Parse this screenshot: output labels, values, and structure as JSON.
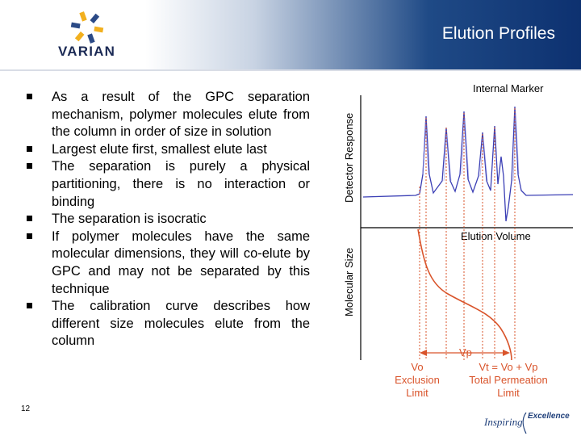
{
  "header": {
    "logo_text": "VARIAN",
    "title": "Elution Profiles"
  },
  "bullets": [
    "As a result of the GPC separation mechanism, polymer molecules elute from the column in order of size in solution",
    "Largest elute first, smallest elute last",
    "The separation is purely a physical partitioning, there is no interaction or binding",
    "The separation is isocratic",
    "If polymer molecules have the same molecular dimensions, they will co-elute by GPC and may not be separated by this technique",
    "The calibration curve describes how different size molecules elute from the column"
  ],
  "page_number": "12",
  "figure": {
    "internal_marker": "Internal Marker",
    "detector_response": "Detector Response",
    "molecular_size": "Molecular Size",
    "elution_volume": "Elution Volume",
    "vp": "Vp",
    "vo_line1": "Vo",
    "vo_line2": "Exclusion",
    "vo_line3": "Limit",
    "vt_line1": "Vt = Vo + Vp",
    "vt_line2": "Total Permeation",
    "vt_line3": "Limit",
    "colors": {
      "trace": "#3b3fb5",
      "curve": "#d9542b",
      "dotted": "#d9542b"
    }
  },
  "footer": {
    "brand_word1": "Inspiring",
    "brand_word2": "Excellence"
  }
}
